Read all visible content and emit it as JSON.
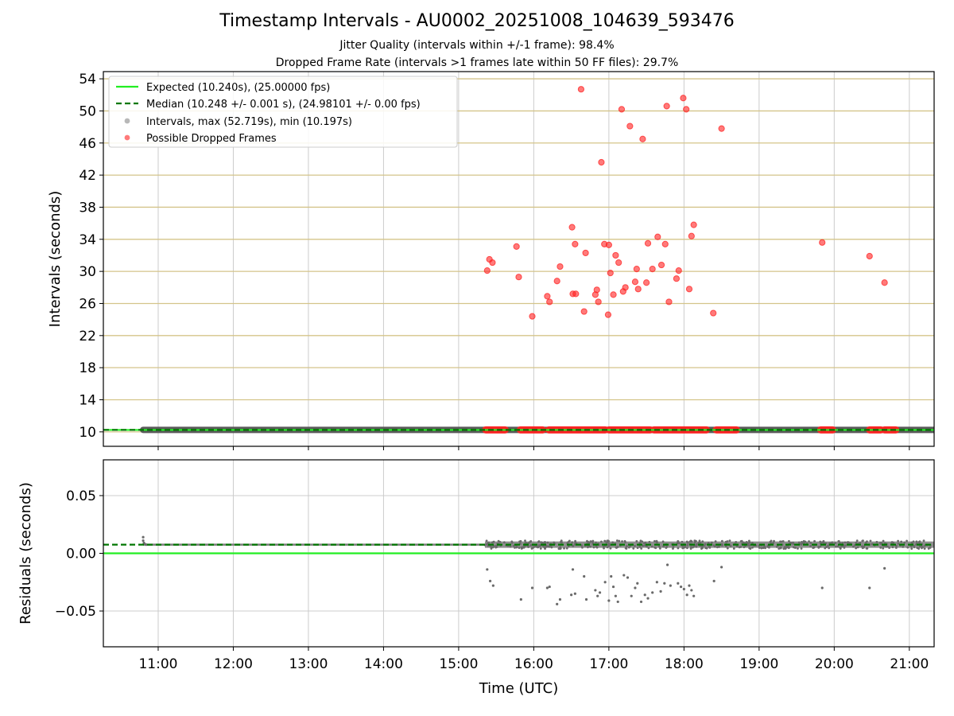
{
  "figure": {
    "title": "Timestamp Intervals - AU0002_20251008_104639_593476",
    "subtitle_jitter": "Jitter Quality (intervals within +/-1 frame): 98.4%",
    "subtitle_dropped": "Dropped Frame Rate (intervals >1 frames late within 50 FF files): 29.7%"
  },
  "colors": {
    "expected": "#22ee22",
    "median": "#007700",
    "intervals": "#888888",
    "dropped": "#ff2222",
    "hgrid_top": "#d4c48a",
    "grid": "#cccccc"
  },
  "chart_data": [
    {
      "type": "scatter",
      "panel": "intervals",
      "ylabel": "Intervals (seconds)",
      "xlabel": "",
      "xlim": [
        10.27,
        21.33
      ],
      "ylim": [
        8.2,
        54.9
      ],
      "yticks": [
        10,
        14,
        18,
        22,
        26,
        30,
        34,
        38,
        42,
        46,
        50,
        54
      ],
      "ytick_labels": [
        "10",
        "14",
        "18",
        "22",
        "26",
        "30",
        "34",
        "38",
        "42",
        "46",
        "50",
        "54"
      ],
      "xticks": [
        11,
        12,
        13,
        14,
        15,
        16,
        17,
        18,
        19,
        20,
        21
      ],
      "grid": true,
      "legend_position": "top-left",
      "legend": [
        {
          "label": "Expected (10.240s), (25.00000 fps)",
          "style": "expected"
        },
        {
          "label": "Median (10.248 +/- 0.001 s), (24.98101 +/- 0.00 fps)",
          "style": "median"
        },
        {
          "label": "Intervals, max (52.719s), min (10.197s)",
          "style": "intervals"
        },
        {
          "label": "Possible Dropped Frames",
          "style": "dropped"
        }
      ],
      "expected_value": 10.24,
      "median_value": 10.248,
      "interval_band": {
        "x_start": 10.8,
        "x_end": 21.33,
        "value": 10.248
      },
      "dropped_clusters": [
        [
          15.36,
          15.62
        ],
        [
          15.82,
          16.12
        ],
        [
          16.2,
          16.95
        ],
        [
          17.0,
          17.55
        ],
        [
          17.6,
          18.3
        ],
        [
          18.43,
          18.7
        ],
        [
          19.82,
          19.98
        ],
        [
          20.47,
          20.62
        ],
        [
          20.67,
          20.82
        ]
      ],
      "dropped_outliers": [
        [
          15.38,
          30.1
        ],
        [
          15.41,
          31.5
        ],
        [
          15.45,
          31.1
        ],
        [
          15.77,
          33.1
        ],
        [
          15.8,
          29.3
        ],
        [
          15.98,
          24.4
        ],
        [
          16.18,
          26.9
        ],
        [
          16.21,
          26.2
        ],
        [
          16.31,
          28.8
        ],
        [
          16.35,
          30.6
        ],
        [
          16.51,
          35.5
        ],
        [
          16.52,
          27.2
        ],
        [
          16.55,
          33.4
        ],
        [
          16.56,
          27.2
        ],
        [
          16.63,
          52.7
        ],
        [
          16.67,
          25.0
        ],
        [
          16.69,
          32.3
        ],
        [
          16.82,
          27.1
        ],
        [
          16.84,
          27.7
        ],
        [
          16.86,
          26.2
        ],
        [
          16.9,
          43.6
        ],
        [
          16.94,
          33.4
        ],
        [
          16.99,
          24.6
        ],
        [
          17.0,
          33.3
        ],
        [
          17.02,
          29.8
        ],
        [
          17.06,
          27.1
        ],
        [
          17.09,
          32.0
        ],
        [
          17.13,
          31.1
        ],
        [
          17.17,
          50.2
        ],
        [
          17.19,
          27.5
        ],
        [
          17.22,
          28.0
        ],
        [
          17.28,
          48.1
        ],
        [
          17.35,
          28.7
        ],
        [
          17.37,
          30.3
        ],
        [
          17.39,
          27.8
        ],
        [
          17.45,
          46.5
        ],
        [
          17.5,
          28.6
        ],
        [
          17.52,
          33.5
        ],
        [
          17.58,
          30.3
        ],
        [
          17.65,
          34.3
        ],
        [
          17.7,
          30.8
        ],
        [
          17.75,
          33.4
        ],
        [
          17.77,
          50.6
        ],
        [
          17.8,
          26.2
        ],
        [
          17.9,
          29.1
        ],
        [
          17.93,
          30.1
        ],
        [
          17.99,
          51.6
        ],
        [
          18.03,
          50.2
        ],
        [
          18.07,
          27.8
        ],
        [
          18.1,
          34.4
        ],
        [
          18.13,
          35.8
        ],
        [
          18.39,
          24.8
        ],
        [
          18.5,
          47.8
        ],
        [
          19.84,
          33.6
        ],
        [
          20.47,
          31.9
        ],
        [
          20.67,
          28.6
        ]
      ]
    },
    {
      "type": "scatter",
      "panel": "residuals",
      "ylabel": "Residuals (seconds)",
      "xlabel": "Time (UTC)",
      "xlim": [
        10.27,
        21.33
      ],
      "ylim": [
        -0.081,
        0.081
      ],
      "yticks": [
        0.05,
        0.0,
        -0.05
      ],
      "ytick_labels": [
        "0.05",
        "0.00",
        "−0.05"
      ],
      "xticks": [
        11,
        12,
        13,
        14,
        15,
        16,
        17,
        18,
        19,
        20,
        21
      ],
      "xtick_labels": [
        "11:00",
        "12:00",
        "13:00",
        "14:00",
        "15:00",
        "16:00",
        "17:00",
        "18:00",
        "19:00",
        "20:00",
        "21:00"
      ],
      "grid": true,
      "expected_value": 0.0,
      "median_value": 0.0075,
      "residual_band": {
        "x_start": 10.8,
        "x_end": 21.33,
        "center": 0.0075
      },
      "start_points": [
        [
          10.8,
          0.014
        ],
        [
          10.8,
          0.011
        ],
        [
          10.81,
          0.009
        ],
        [
          10.82,
          0.008
        ],
        [
          10.84,
          0.0075
        ]
      ],
      "negative_residuals": [
        [
          15.38,
          -0.014
        ],
        [
          15.42,
          -0.024
        ],
        [
          15.46,
          -0.028
        ],
        [
          15.83,
          -0.04
        ],
        [
          15.98,
          -0.03
        ],
        [
          16.18,
          -0.03
        ],
        [
          16.21,
          -0.029
        ],
        [
          16.31,
          -0.044
        ],
        [
          16.35,
          -0.04
        ],
        [
          16.5,
          -0.036
        ],
        [
          16.52,
          -0.014
        ],
        [
          16.55,
          -0.035
        ],
        [
          16.67,
          -0.02
        ],
        [
          16.7,
          -0.04
        ],
        [
          16.82,
          -0.032
        ],
        [
          16.85,
          -0.037
        ],
        [
          16.88,
          -0.034
        ],
        [
          16.95,
          -0.025
        ],
        [
          17.0,
          -0.041
        ],
        [
          17.03,
          -0.02
        ],
        [
          17.06,
          -0.029
        ],
        [
          17.09,
          -0.037
        ],
        [
          17.12,
          -0.042
        ],
        [
          17.2,
          -0.019
        ],
        [
          17.25,
          -0.021
        ],
        [
          17.3,
          -0.037
        ],
        [
          17.35,
          -0.03
        ],
        [
          17.38,
          -0.026
        ],
        [
          17.43,
          -0.042
        ],
        [
          17.48,
          -0.036
        ],
        [
          17.52,
          -0.039
        ],
        [
          17.58,
          -0.034
        ],
        [
          17.64,
          -0.025
        ],
        [
          17.69,
          -0.033
        ],
        [
          17.74,
          -0.026
        ],
        [
          17.78,
          -0.01
        ],
        [
          17.82,
          -0.028
        ],
        [
          17.92,
          -0.026
        ],
        [
          17.96,
          -0.029
        ],
        [
          18.0,
          -0.031
        ],
        [
          18.04,
          -0.036
        ],
        [
          18.07,
          -0.028
        ],
        [
          18.1,
          -0.032
        ],
        [
          18.13,
          -0.037
        ],
        [
          18.4,
          -0.024
        ],
        [
          18.5,
          -0.012
        ],
        [
          19.84,
          -0.03
        ],
        [
          20.47,
          -0.03
        ],
        [
          20.67,
          -0.013
        ]
      ]
    }
  ]
}
